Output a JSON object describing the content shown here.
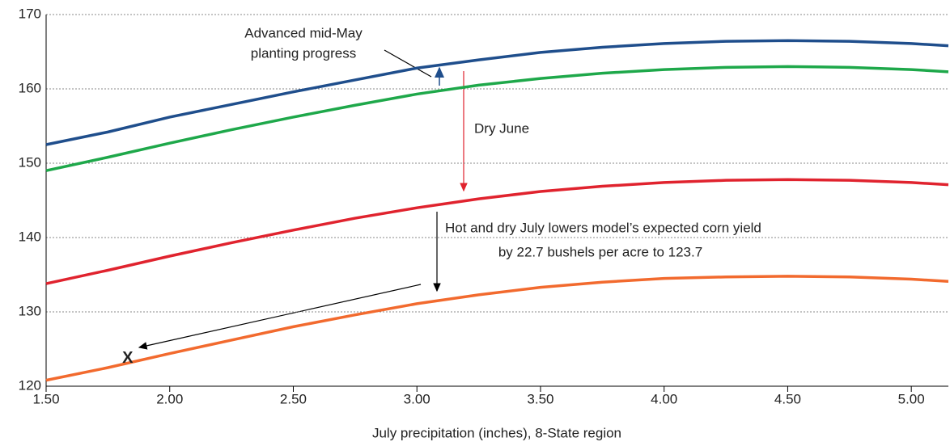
{
  "chart_data": {
    "type": "line",
    "xlabel": "July precipitation (inches), 8-State region",
    "x": [
      1.5,
      1.75,
      2.0,
      2.25,
      2.5,
      2.75,
      3.0,
      3.25,
      3.5,
      3.75,
      4.0,
      4.25,
      4.5,
      4.75,
      5.0,
      5.15
    ],
    "series": [
      {
        "color": "#1f4e8c",
        "values": [
          152.5,
          154.2,
          156.2,
          157.9,
          159.6,
          161.2,
          162.8,
          163.9,
          164.9,
          165.6,
          166.1,
          166.4,
          166.5,
          166.4,
          166.1,
          165.8
        ]
      },
      {
        "color": "#1ea84a",
        "values": [
          149,
          150.8,
          152.7,
          154.5,
          156.2,
          157.8,
          159.3,
          160.5,
          161.4,
          162.1,
          162.6,
          162.9,
          163,
          162.9,
          162.6,
          162.3
        ]
      },
      {
        "color": "#e0232e",
        "values": [
          133.8,
          135.6,
          137.5,
          139.3,
          141,
          142.6,
          144,
          145.2,
          146.2,
          146.9,
          147.4,
          147.7,
          147.8,
          147.7,
          147.4,
          147.1
        ]
      },
      {
        "color": "#f26a2e",
        "values": [
          120.8,
          122.5,
          124.4,
          126.2,
          128,
          129.6,
          131.1,
          132.3,
          133.3,
          134,
          134.5,
          134.7,
          134.8,
          134.7,
          134.4,
          134.1
        ]
      }
    ],
    "xlim": [
      1.5,
      5.15
    ],
    "xticks": [
      {
        "value": 1.5,
        "label": "1.50"
      },
      {
        "value": 2.0,
        "label": "2.00"
      },
      {
        "value": 2.5,
        "label": "2.50"
      },
      {
        "value": 3.0,
        "label": "3.00"
      },
      {
        "value": 3.5,
        "label": "3.50"
      },
      {
        "value": 4.0,
        "label": "4.00"
      },
      {
        "value": 4.5,
        "label": "4.50"
      },
      {
        "value": 5.0,
        "label": "5.00"
      }
    ],
    "ylim": [
      120,
      170
    ],
    "yticks": [
      120,
      130,
      140,
      150,
      160,
      170
    ],
    "grid": true,
    "marker": {
      "x": 1.83,
      "y": 123.7,
      "label": "X"
    },
    "annotations": [
      "Advanced mid-May",
      "planting progress",
      "Dry June",
      "Hot and dry July lowers model’s expected corn yield",
      "by 22.7 bushels per acre to 123.7"
    ]
  }
}
